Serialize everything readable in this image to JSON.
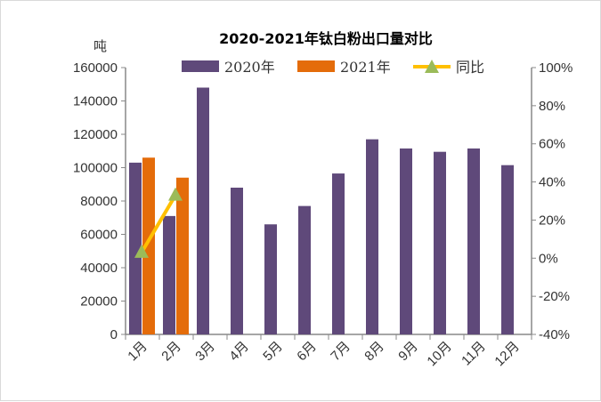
{
  "chart_data": {
    "type": "bar",
    "title": "2020-2021年钛白粉出口量对比",
    "ylabel": "吨",
    "categories": [
      "1月",
      "2月",
      "3月",
      "4月",
      "5月",
      "6月",
      "7月",
      "8月",
      "9月",
      "10月",
      "11月",
      "12月"
    ],
    "series": [
      {
        "name": "2020年",
        "type": "bar",
        "axis": "left",
        "color": "#5f497a",
        "values": [
          103000,
          71000,
          148000,
          88000,
          66000,
          77000,
          96500,
          117000,
          111500,
          109500,
          111500,
          101500
        ]
      },
      {
        "name": "2021年",
        "type": "bar",
        "axis": "left",
        "color": "#e46c0a",
        "values": [
          106000,
          94000,
          null,
          null,
          null,
          null,
          null,
          null,
          null,
          null,
          null,
          null
        ]
      },
      {
        "name": "同比",
        "type": "line",
        "axis": "right",
        "color": "#ffc000",
        "marker_color": "#9bbb59",
        "values": [
          0.03,
          0.33,
          null,
          null,
          null,
          null,
          null,
          null,
          null,
          null,
          null,
          null
        ]
      }
    ],
    "ylim": [
      0,
      160000
    ],
    "yticks": [
      "0",
      "20000",
      "40000",
      "60000",
      "80000",
      "100000",
      "120000",
      "140000",
      "160000"
    ],
    "y2lim": [
      -0.4,
      1.0
    ],
    "y2ticks": [
      "-40%",
      "-20%",
      "0%",
      "20%",
      "40%",
      "60%",
      "80%",
      "100%"
    ],
    "legend": "top",
    "grid": false
  }
}
